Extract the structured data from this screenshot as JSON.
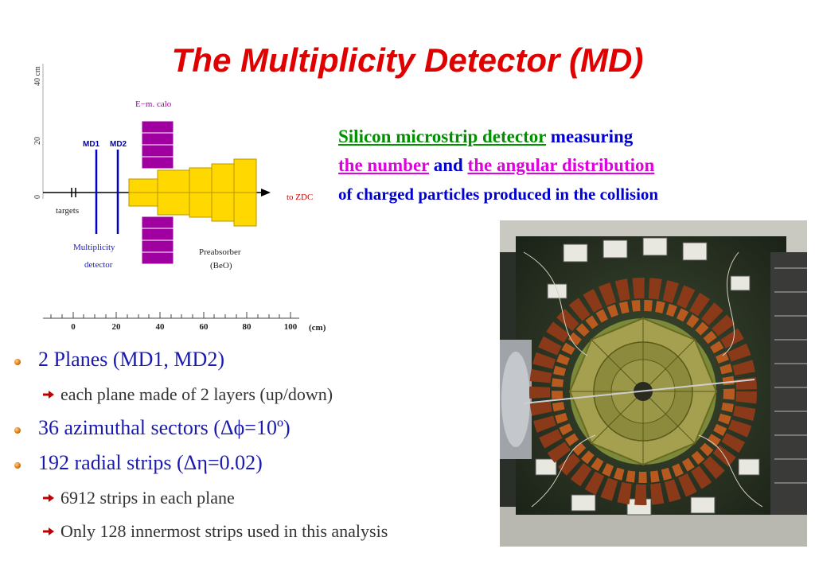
{
  "title": "The Multiplicity Detector (MD)",
  "description": {
    "highlight1": "Silicon microstrip detector",
    "text1": " measuring",
    "highlight2": "the number",
    "text2": " and ",
    "highlight3": "the angular distribution",
    "line3": "of charged particles produced in the collision"
  },
  "diagram": {
    "y_axis_ticks": [
      "40 cm",
      "20",
      "0"
    ],
    "x_axis_ticks": [
      "0",
      "20",
      "40",
      "60",
      "80",
      "100"
    ],
    "x_axis_unit": "(cm)",
    "labels": {
      "calo": "E−m. calo",
      "md1": "MD1",
      "md2": "MD2",
      "zdc": "to ZDC",
      "targets": "targets",
      "multiplicity1": "Multiplicity",
      "multiplicity2": "detector",
      "preabsorber1": "Preabsorber",
      "preabsorber2": "(BeO)"
    },
    "colors": {
      "absorber": "#ffd800",
      "calo": "#a000a0",
      "detector": "#0000c0",
      "label_blue": "#2020c0",
      "zdc": "#d00000"
    }
  },
  "bullets": [
    {
      "level": 1,
      "text": "2 Planes (MD1, MD2)"
    },
    {
      "level": 2,
      "text": "each plane made of 2 layers (up/down)"
    },
    {
      "level": 1,
      "text": "36 azimuthal sectors (Δϕ=10º)"
    },
    {
      "level": 1,
      "text": "192 radial strips (Δη=0.02)"
    },
    {
      "level": 2,
      "text": "6912 strips in each plane"
    },
    {
      "level": 2,
      "text": "Only 128 innermost strips used in this analysis"
    }
  ],
  "photo": {
    "subject": "silicon-microstrip-detector-photo"
  }
}
